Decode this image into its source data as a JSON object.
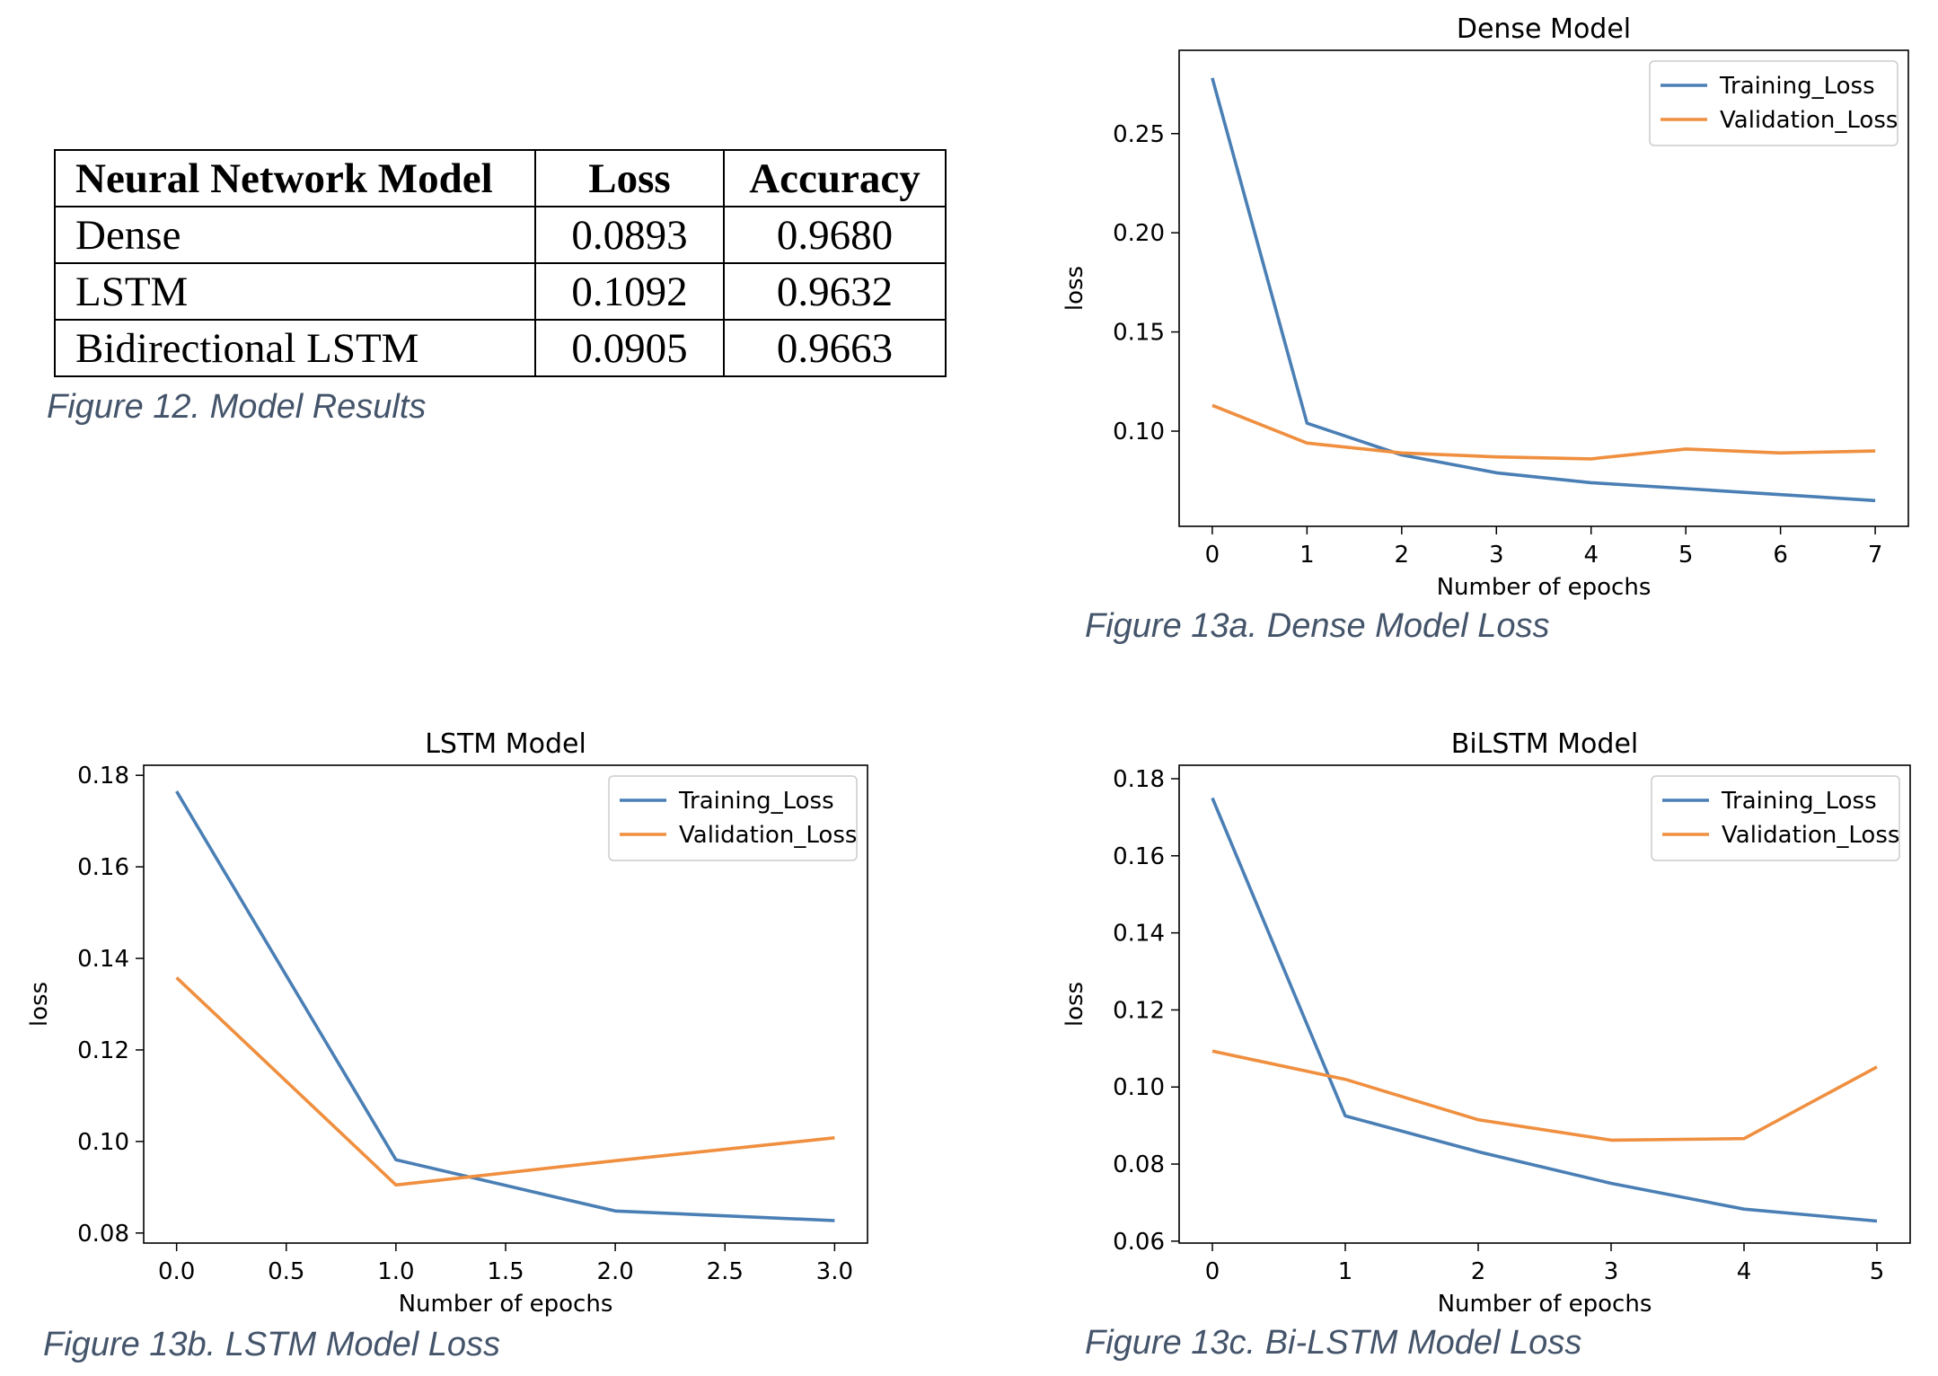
{
  "table": {
    "headers": [
      "Neural Network Model",
      "Loss",
      "Accuracy"
    ],
    "rows": [
      [
        "Dense",
        "0.0893",
        "0.9680"
      ],
      [
        "LSTM",
        "0.1092",
        "0.9632"
      ],
      [
        "Bidirectional LSTM",
        "0.0905",
        "0.9663"
      ]
    ]
  },
  "captions": {
    "fig12": "Figure 12. Model Results",
    "fig13a": "Figure 13a. Dense Model Loss",
    "fig13b": "Figure 13b. LSTM Model Loss",
    "fig13c": "Figure 13c. Bi-LSTM Model Loss"
  },
  "colors": {
    "training": "#4a7fb5",
    "validation": "#ef8f3f"
  },
  "chart_data": [
    {
      "type": "line",
      "title": "Dense Model",
      "xlabel": "Number of epochs",
      "ylabel": "loss",
      "xlim": [
        -0.35,
        7.35
      ],
      "ylim": [
        0.052,
        0.292
      ],
      "xticks": [
        0,
        1,
        2,
        3,
        4,
        5,
        6,
        7
      ],
      "xtick_labels": [
        "0",
        "1",
        "2",
        "3",
        "4",
        "5",
        "6",
        "7"
      ],
      "yticks": [
        0.1,
        0.15,
        0.2,
        0.25
      ],
      "ytick_labels": [
        "0.10",
        "0.15",
        "0.20",
        "0.25"
      ],
      "legend": "top-right",
      "x": [
        0,
        1,
        2,
        3,
        4,
        5,
        6,
        7
      ],
      "series": [
        {
          "name": "Training_Loss",
          "values": [
            0.278,
            0.104,
            0.088,
            0.079,
            0.074,
            0.071,
            0.068,
            0.065
          ]
        },
        {
          "name": "Validation_Loss",
          "values": [
            0.113,
            0.094,
            0.089,
            0.087,
            0.086,
            0.091,
            0.089,
            0.09
          ]
        }
      ]
    },
    {
      "type": "line",
      "title": "LSTM Model",
      "xlabel": "Number of epochs",
      "ylabel": "loss",
      "xlim": [
        -0.15,
        3.15
      ],
      "ylim": [
        0.0778,
        0.1822
      ],
      "xticks": [
        0.0,
        0.5,
        1.0,
        1.5,
        2.0,
        2.5,
        3.0
      ],
      "xtick_labels": [
        "0.0",
        "0.5",
        "1.0",
        "1.5",
        "2.0",
        "2.5",
        "3.0"
      ],
      "yticks": [
        0.08,
        0.1,
        0.12,
        0.14,
        0.16,
        0.18
      ],
      "ytick_labels": [
        "0.08",
        "0.10",
        "0.12",
        "0.14",
        "0.16",
        "0.18"
      ],
      "legend": "top-right",
      "x": [
        0,
        1,
        2,
        3
      ],
      "series": [
        {
          "name": "Training_Loss",
          "values": [
            0.1765,
            0.096,
            0.0848,
            0.0827
          ]
        },
        {
          "name": "Validation_Loss",
          "values": [
            0.1358,
            0.0905,
            0.0958,
            0.1008
          ]
        }
      ]
    },
    {
      "type": "line",
      "title": "BiLSTM Model",
      "xlabel": "Number of epochs",
      "ylabel": "loss",
      "xlim": [
        -0.25,
        5.25
      ],
      "ylim": [
        0.0595,
        0.1835
      ],
      "xticks": [
        0,
        1,
        2,
        3,
        4,
        5
      ],
      "xtick_labels": [
        "0",
        "1",
        "2",
        "3",
        "4",
        "5"
      ],
      "yticks": [
        0.06,
        0.08,
        0.1,
        0.12,
        0.14,
        0.16,
        0.18
      ],
      "ytick_labels": [
        "0.06",
        "0.08",
        "0.10",
        "0.12",
        "0.14",
        "0.16",
        "0.18"
      ],
      "legend": "top-right",
      "x": [
        0,
        1,
        2,
        3,
        4,
        5
      ],
      "series": [
        {
          "name": "Training_Loss",
          "values": [
            0.175,
            0.0925,
            0.0832,
            0.075,
            0.0683,
            0.0652
          ]
        },
        {
          "name": "Validation_Loss",
          "values": [
            0.1093,
            0.102,
            0.0915,
            0.0862,
            0.0866,
            0.1052
          ]
        }
      ]
    }
  ]
}
